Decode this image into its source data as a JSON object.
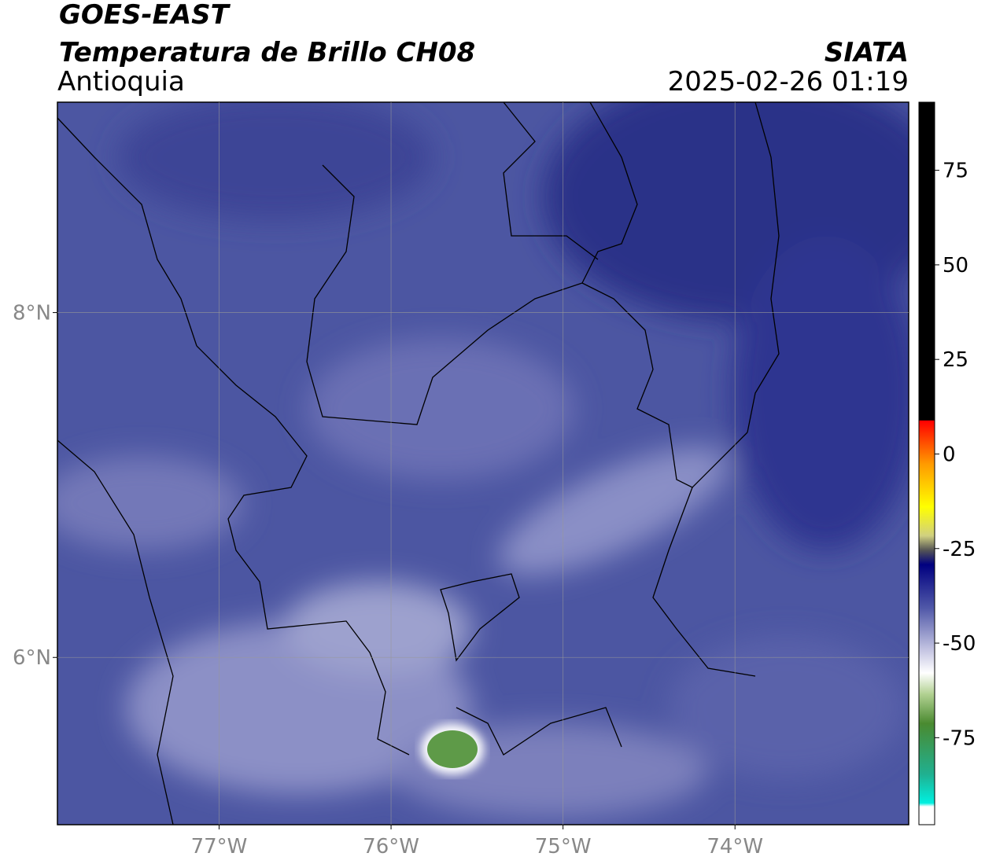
{
  "header": {
    "line1": "GOES-EAST",
    "title": "Temperatura de Brillo CH08",
    "source": "SIATA",
    "region": "Antioquia",
    "datetime": "2025-02-26 01:19"
  },
  "map": {
    "xlim": [
      -77.94,
      -72.99
    ],
    "ylim": [
      5.03,
      9.22
    ],
    "xticks": [
      {
        "value": -77,
        "label": "77°W"
      },
      {
        "value": -76,
        "label": "76°W"
      },
      {
        "value": -75,
        "label": "75°W"
      },
      {
        "value": -74,
        "label": "74°W"
      }
    ],
    "yticks": [
      {
        "value": 8,
        "label": "8°N"
      },
      {
        "value": 6,
        "label": "6°N"
      }
    ],
    "grid": true
  },
  "colorbar": {
    "lim": [
      -98,
      93
    ],
    "ticks": [
      75,
      50,
      25,
      0,
      -25,
      -50,
      -75
    ]
  }
}
